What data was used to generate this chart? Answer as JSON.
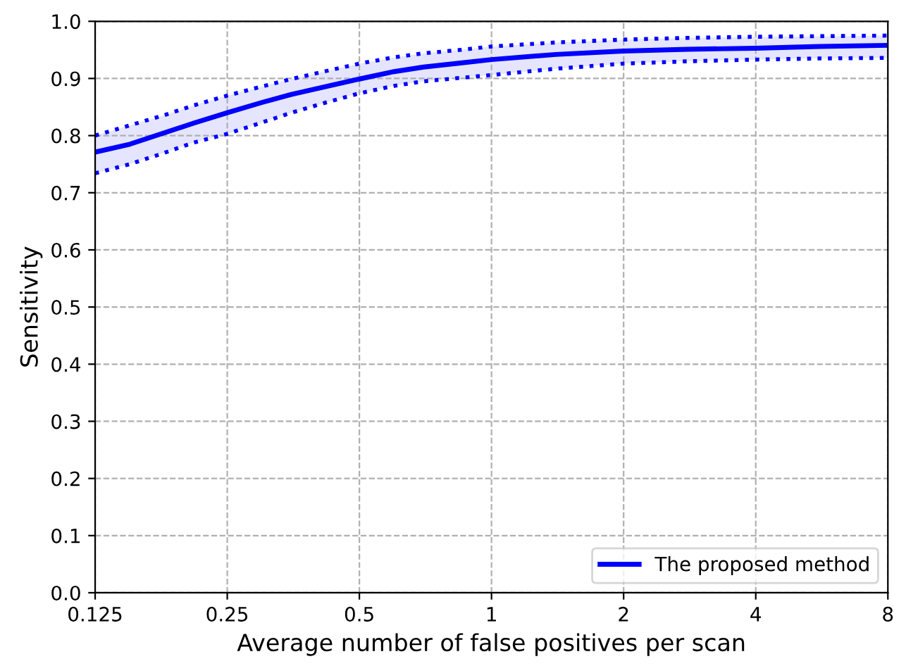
{
  "chart_data": {
    "type": "line",
    "xlabel": "Average number of false positives per scan",
    "ylabel": "Sensitivity",
    "log": "x",
    "xlim": [
      0.125,
      8
    ],
    "ylim": [
      0,
      1
    ],
    "xticks": [
      0.125,
      0.25,
      0.5,
      1,
      2,
      4,
      8
    ],
    "yticks": [
      {
        "value": 0,
        "label": "0.0"
      },
      {
        "value": 0.1,
        "label": "0.1"
      },
      {
        "value": 0.2,
        "label": "0.2"
      },
      {
        "value": 0.3,
        "label": "0.3"
      },
      {
        "value": 0.4,
        "label": "0.4"
      },
      {
        "value": 0.5,
        "label": "0.5"
      },
      {
        "value": 0.6,
        "label": "0.6"
      },
      {
        "value": 0.7,
        "label": "0.7"
      },
      {
        "value": 0.8,
        "label": "0.8"
      },
      {
        "value": 0.9,
        "label": "0.9"
      },
      {
        "value": 1,
        "label": "1.0"
      }
    ],
    "grid": true,
    "legend": "bottom right",
    "line_style": "solid",
    "marker": "none",
    "x": [
      0.125,
      0.15,
      0.18,
      0.21,
      0.25,
      0.3,
      0.35,
      0.42,
      0.5,
      0.6,
      0.7,
      0.85,
      1,
      1.4,
      2,
      2.8,
      4,
      5.6,
      8
    ],
    "series": [
      {
        "name": "The proposed method",
        "color": "#0000ff",
        "values": [
          0.771,
          0.785,
          0.805,
          0.822,
          0.84,
          0.858,
          0.872,
          0.886,
          0.899,
          0.912,
          0.92,
          0.927,
          0.933,
          0.942,
          0.948,
          0.951,
          0.953,
          0.956,
          0.958
        ],
        "lower": [
          0.734,
          0.75,
          0.77,
          0.788,
          0.803,
          0.823,
          0.84,
          0.858,
          0.874,
          0.887,
          0.895,
          0.901,
          0.906,
          0.917,
          0.926,
          0.93,
          0.933,
          0.935,
          0.936
        ],
        "upper": [
          0.8,
          0.818,
          0.836,
          0.853,
          0.87,
          0.886,
          0.899,
          0.913,
          0.926,
          0.937,
          0.944,
          0.95,
          0.956,
          0.963,
          0.968,
          0.971,
          0.973,
          0.974,
          0.975
        ]
      },
      {
        "color": "#0000ff",
        "line_style": "dotted",
        "values": [
          0.734,
          0.75,
          0.77,
          0.788,
          0.803,
          0.823,
          0.84,
          0.858,
          0.874,
          0.887,
          0.895,
          0.901,
          0.906,
          0.917,
          0.926,
          0.93,
          0.933,
          0.935,
          0.936
        ]
      },
      {
        "color": "#0000ff",
        "line_style": "dotted",
        "values": [
          0.8,
          0.818,
          0.836,
          0.853,
          0.87,
          0.886,
          0.899,
          0.913,
          0.926,
          0.937,
          0.944,
          0.95,
          0.956,
          0.963,
          0.968,
          0.971,
          0.973,
          0.974,
          0.975
        ]
      }
    ]
  }
}
